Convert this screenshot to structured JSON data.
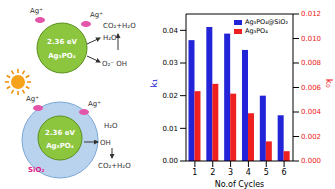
{
  "chart_data": {
    "type": "bar",
    "xlabel": "No.of Cycles",
    "ylabel": "k₁",
    "y2label": "k₀",
    "categories": [
      "1",
      "2",
      "3",
      "4",
      "5",
      "6"
    ],
    "series": [
      {
        "name": "Ag₃PO₄@SiO₂",
        "color": "#2323d8",
        "values": [
          0.037,
          0.041,
          0.039,
          0.034,
          0.02,
          0.014
        ]
      },
      {
        "name": "Ag₃PO₄",
        "color": "#ee2020",
        "axis": "y2",
        "values": [
          0.0057,
          0.0063,
          0.0055,
          0.0039,
          0.0016,
          0.0008
        ]
      }
    ],
    "ylim": [
      0,
      0.045
    ],
    "yticks": [
      {
        "value": 0,
        "label": "0.00"
      },
      0.01,
      0.02,
      0.03,
      0.04
    ],
    "y2lim": [
      0,
      0.012
    ],
    "y2ticks": [
      {
        "value": 0,
        "label": "0.000"
      },
      0.002,
      0.004,
      0.006,
      0.008,
      {
        "value": 0.01,
        "label": "0.010"
      },
      0.012
    ],
    "legend": "upper right"
  },
  "diagram": {
    "top": {
      "gap": "2.36 eV",
      "particle": "Ag₃PO₄",
      "ions": [
        "Ag⁺",
        "Ag⁺"
      ],
      "species": [
        "H₂O",
        "O₂⁻ OH",
        "CO₂+H₂O"
      ]
    },
    "bottom": {
      "gap": "2.36 eV",
      "particle": "Ag₃PO₄",
      "shell": "SiO₂",
      "ions": [
        "Ag⁺",
        "Ag⁺"
      ],
      "species": [
        "OH",
        "H₂O",
        "CO₂+H₂O"
      ]
    }
  }
}
